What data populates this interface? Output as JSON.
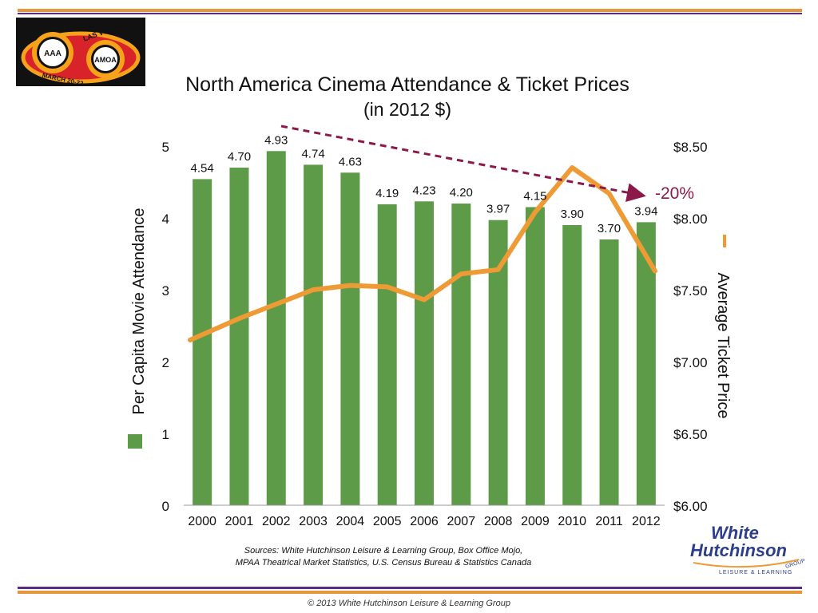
{
  "header": {
    "title": "North America Cinema Attendance & Ticket Prices",
    "subtitle": "(in 2012 $)"
  },
  "event_logo": {
    "org1": "AAA",
    "org2": "AMOA",
    "place": "LAS VEGAS, NV",
    "dates": "MARCH 20-22"
  },
  "chart_data": {
    "type": "bar",
    "categories": [
      "2000",
      "2001",
      "2002",
      "2003",
      "2004",
      "2005",
      "2006",
      "2007",
      "2008",
      "2009",
      "2010",
      "2011",
      "2012"
    ],
    "series": [
      {
        "name": "Per Capita Movie Attendance",
        "type": "bar",
        "axis": "left",
        "color": "#5e9b48",
        "values": [
          4.54,
          4.7,
          4.93,
          4.74,
          4.63,
          4.19,
          4.23,
          4.2,
          3.97,
          4.15,
          3.9,
          3.7,
          3.94
        ],
        "labels": [
          "4.54",
          "4.70",
          "4.93",
          "4.74",
          "4.63",
          "4.19",
          "4.23",
          "4.20",
          "3.97",
          "4.15",
          "3.90",
          "3.70",
          "3.94"
        ]
      },
      {
        "name": "Average Ticket Price",
        "type": "line",
        "axis": "right",
        "color": "#ee9a35",
        "values": [
          7.15,
          7.3,
          7.4,
          7.5,
          7.53,
          7.52,
          7.43,
          7.61,
          7.64,
          8.04,
          8.35,
          8.17,
          7.63
        ]
      }
    ],
    "ylabel": "Per Capita Movie Attendance",
    "y2label": "Average Ticket Price",
    "ylim": [
      0,
      5
    ],
    "y2lim": [
      6.0,
      8.5
    ],
    "yticks": [
      "0",
      "1",
      "2",
      "3",
      "4",
      "5"
    ],
    "y2ticks": [
      "$6.00",
      "$6.50",
      "$7.00",
      "$7.50",
      "$8.00",
      "$8.50"
    ],
    "trend_annotation": {
      "label": "-20%",
      "color": "#8b1a4a"
    },
    "grid": false
  },
  "footer": {
    "sources_line1": "Sources:  White Hutchinson Leisure & Learning Group, Box Office Mojo,",
    "sources_line2": "MPAA Theatrical Market Statistics, U.S. Census Bureau & Statistics Canada",
    "copyright": "© 2013 White Hutchinson Leisure & Learning Group"
  },
  "brand": {
    "line1": "White",
    "line2": "Hutchinson",
    "tagline": "LEISURE & LEARNING",
    "group": "GROUP"
  }
}
